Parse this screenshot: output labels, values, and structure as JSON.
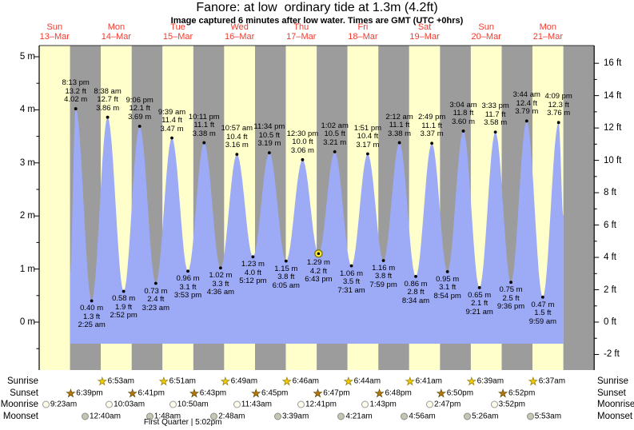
{
  "title": "Fanore: at low  ordinary tide at 1.3m (4.2ft)",
  "subtitle": "Image captured 6 minutes after low water. Times are GMT (UTC +0hrs)",
  "colors": {
    "band_day": "#ffffcc",
    "band_night": "#9c9c9c",
    "water": "#9daaf5",
    "day_label_red": "#f23b2e",
    "marker_fill": "#ffe83a",
    "marker_stroke": "#6f6f00"
  },
  "days": [
    {
      "name": "Sun",
      "date": "13–Mar"
    },
    {
      "name": "Mon",
      "date": "14–Mar"
    },
    {
      "name": "Tue",
      "date": "15–Mar"
    },
    {
      "name": "Wed",
      "date": "16–Mar"
    },
    {
      "name": "Thu",
      "date": "17–Mar"
    },
    {
      "name": "Fri",
      "date": "18–Mar"
    },
    {
      "name": "Sat",
      "date": "19–Mar"
    },
    {
      "name": "Sun",
      "date": "20–Mar"
    },
    {
      "name": "Mon",
      "date": "21–Mar"
    }
  ],
  "axes": {
    "left_unit": "m",
    "left_tick_values": [
      5,
      4,
      3,
      2,
      1,
      0
    ],
    "right_unit": "ft",
    "right_tick_values": [
      16,
      14,
      12,
      10,
      8,
      6,
      4,
      2,
      0,
      -2
    ]
  },
  "chart_data": {
    "type": "area",
    "title": "Fanore: at low  ordinary tide at 1.3m (4.2ft)",
    "x_unit": "hours since Sun 13-Mar 06:00 GMT",
    "x_range_hours": [
      0,
      216
    ],
    "y_unit_left": "m",
    "y_unit_right": "ft",
    "ylim_m": [
      -0.9,
      5.2
    ],
    "bands": {
      "count": 18,
      "first": "day",
      "meaning": "alternating 12h day/night columns"
    },
    "anchors": {
      "start": {
        "t": 12.0,
        "m": 0.9
      },
      "end": {
        "t": 204.0,
        "m": 2.0
      }
    },
    "extremes": [
      {
        "type": "H",
        "t": 14.217,
        "time": "8:13 pm",
        "ft": "13.2",
        "m": "4.02"
      },
      {
        "type": "L",
        "t": 20.417,
        "time": "2:25 am",
        "ft": "1.3",
        "m": "0.40"
      },
      {
        "type": "H",
        "t": 26.633,
        "time": "8:38 am",
        "ft": "12.7",
        "m": "3.86"
      },
      {
        "type": "L",
        "t": 32.867,
        "time": "2:52 pm",
        "ft": "1.9",
        "m": "0.58"
      },
      {
        "type": "H",
        "t": 39.1,
        "time": "9:06 pm",
        "ft": "12.1",
        "m": "3.69"
      },
      {
        "type": "L",
        "t": 45.383,
        "time": "3:23 am",
        "ft": "2.4",
        "m": "0.73"
      },
      {
        "type": "H",
        "t": 51.65,
        "time": "9:39 am",
        "ft": "11.4",
        "m": "3.47"
      },
      {
        "type": "L",
        "t": 57.883,
        "time": "3:53 pm",
        "ft": "3.1",
        "m": "0.96"
      },
      {
        "type": "H",
        "t": 64.183,
        "time": "10:11 pm",
        "ft": "11.1",
        "m": "3.38"
      },
      {
        "type": "L",
        "t": 70.6,
        "time": "4:36 am",
        "ft": "3.3",
        "m": "1.02"
      },
      {
        "type": "H",
        "t": 76.95,
        "time": "10:57 am",
        "ft": "10.4",
        "m": "3.16"
      },
      {
        "type": "L",
        "t": 83.2,
        "time": "5:12 pm",
        "ft": "4.0",
        "m": "1.23"
      },
      {
        "type": "H",
        "t": 89.567,
        "time": "11:34 pm",
        "ft": "10.5",
        "m": "3.19"
      },
      {
        "type": "L",
        "t": 96.083,
        "time": "6:05 am",
        "ft": "3.8",
        "m": "1.15"
      },
      {
        "type": "H",
        "t": 102.5,
        "time": "12:30 pm",
        "ft": "10.0",
        "m": "3.06"
      },
      {
        "type": "L",
        "t": 108.717,
        "time": "6:43 pm",
        "ft": "4.2",
        "m": "1.29",
        "current": true
      },
      {
        "type": "H",
        "t": 115.033,
        "time": "1:02 am",
        "ft": "10.5",
        "m": "3.21"
      },
      {
        "type": "L",
        "t": 121.517,
        "time": "7:31 am",
        "ft": "3.5",
        "m": "1.06"
      },
      {
        "type": "H",
        "t": 127.85,
        "time": "1:51 pm",
        "ft": "10.4",
        "m": "3.17"
      },
      {
        "type": "L",
        "t": 133.983,
        "time": "7:59 pm",
        "ft": "3.8",
        "m": "1.16"
      },
      {
        "type": "H",
        "t": 140.2,
        "time": "2:12 am",
        "ft": "11.1",
        "m": "3.38"
      },
      {
        "type": "L",
        "t": 146.567,
        "time": "8:34 am",
        "ft": "2.8",
        "m": "0.86"
      },
      {
        "type": "H",
        "t": 152.817,
        "time": "2:49 pm",
        "ft": "11.1",
        "m": "3.37"
      },
      {
        "type": "L",
        "t": 158.9,
        "time": "8:54 pm",
        "ft": "3.1",
        "m": "0.95"
      },
      {
        "type": "H",
        "t": 165.067,
        "time": "3:04 am",
        "ft": "11.8",
        "m": "3.60"
      },
      {
        "type": "L",
        "t": 171.35,
        "time": "9:21 am",
        "ft": "2.1",
        "m": "0.65"
      },
      {
        "type": "H",
        "t": 177.55,
        "time": "3:33 pm",
        "ft": "11.7",
        "m": "3.58"
      },
      {
        "type": "L",
        "t": 183.6,
        "time": "9:36 pm",
        "ft": "2.5",
        "m": "0.75"
      },
      {
        "type": "H",
        "t": 189.733,
        "time": "3:44 am",
        "ft": "12.4",
        "m": "3.79"
      },
      {
        "type": "L",
        "t": 195.983,
        "time": "9:59 am",
        "ft": "1.5",
        "m": "0.47"
      },
      {
        "type": "H",
        "t": 202.15,
        "time": "4:09 pm",
        "ft": "12.3",
        "m": "3.76"
      }
    ]
  },
  "astro": {
    "rows": [
      {
        "key": "sunrise",
        "label": "Sunrise",
        "items": [
          {
            "time": "6:53am",
            "t": 24.883
          },
          {
            "time": "6:51am",
            "t": 48.85
          },
          {
            "time": "6:49am",
            "t": 72.817
          },
          {
            "time": "6:46am",
            "t": 96.767
          },
          {
            "time": "6:44am",
            "t": 120.733
          },
          {
            "time": "6:41am",
            "t": 144.683
          },
          {
            "time": "6:39am",
            "t": 168.65
          },
          {
            "time": "6:37am",
            "t": 192.617
          }
        ]
      },
      {
        "key": "sunset",
        "label": "Sunset",
        "items": [
          {
            "time": "6:39pm",
            "t": 12.65
          },
          {
            "time": "6:41pm",
            "t": 36.683
          },
          {
            "time": "6:43pm",
            "t": 60.717
          },
          {
            "time": "6:45pm",
            "t": 84.75
          },
          {
            "time": "6:47pm",
            "t": 108.783
          },
          {
            "time": "6:48pm",
            "t": 132.8
          },
          {
            "time": "6:50pm",
            "t": 156.833
          },
          {
            "time": "6:52pm",
            "t": 180.867
          }
        ]
      },
      {
        "key": "moonrise",
        "label": "Moonrise",
        "items": [
          {
            "time": "9:23am",
            "t": 3.383
          },
          {
            "time": "10:03am",
            "t": 28.05
          },
          {
            "time": "10:50am",
            "t": 52.833
          },
          {
            "time": "11:43am",
            "t": 77.717
          },
          {
            "time": "12:41pm",
            "t": 102.683
          },
          {
            "time": "1:43pm",
            "t": 127.717
          },
          {
            "time": "2:47pm",
            "t": 152.783
          },
          {
            "time": "3:52pm",
            "t": 177.867
          }
        ]
      },
      {
        "key": "moonset",
        "label": "Moonset",
        "items": [
          {
            "time": "12:40am",
            "t": 18.667
          },
          {
            "time": "1:48am",
            "t": 43.8
          },
          {
            "time": "2:48am",
            "t": 68.8
          },
          {
            "time": "3:39am",
            "t": 93.65
          },
          {
            "time": "4:21am",
            "t": 118.35
          },
          {
            "time": "4:56am",
            "t": 142.933
          },
          {
            "time": "5:26am",
            "t": 167.433
          },
          {
            "time": "5:53am",
            "t": 191.883
          }
        ]
      }
    ],
    "footnote": "First Quarter | 5:02pm",
    "footnote_t": 59.03
  }
}
